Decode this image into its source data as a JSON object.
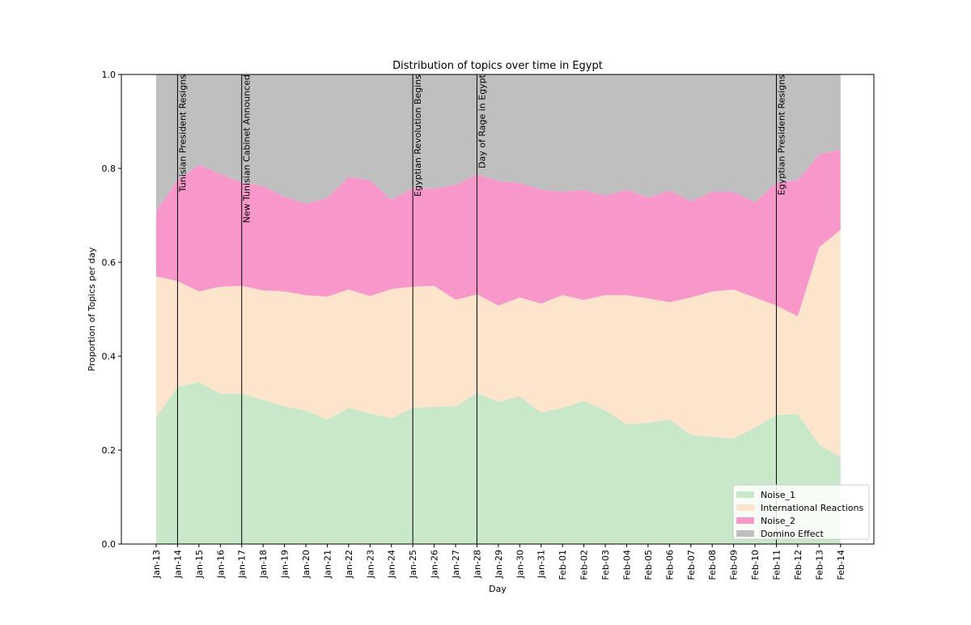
{
  "chart_data": {
    "type": "area",
    "title": "Distribution of topics over time in Egypt",
    "xlabel": "Day",
    "ylabel": "Proportion of Topics per day",
    "ylim": [
      0,
      1
    ],
    "yticks": [
      "0.0",
      "0.2",
      "0.4",
      "0.6",
      "0.8",
      "1.0"
    ],
    "stacked": true,
    "grid": false,
    "legend_position": "lower-right",
    "x": [
      "Jan-13",
      "Jan-14",
      "Jan-15",
      "Jan-16",
      "Jan-17",
      "Jan-18",
      "Jan-19",
      "Jan-20",
      "Jan-21",
      "Jan-22",
      "Jan-23",
      "Jan-24",
      "Jan-25",
      "Jan-26",
      "Jan-27",
      "Jan-28",
      "Jan-29",
      "Jan-30",
      "Jan-31",
      "Feb-01",
      "Feb-02",
      "Feb-03",
      "Feb-04",
      "Feb-05",
      "Feb-06",
      "Feb-07",
      "Feb-08",
      "Feb-09",
      "Feb-10",
      "Feb-11",
      "Feb-12",
      "Feb-13",
      "Feb-14"
    ],
    "series": [
      {
        "name": "Noise_1",
        "color": "#c9e8c9",
        "values": [
          0.27,
          0.335,
          0.345,
          0.32,
          0.32,
          0.307,
          0.293,
          0.285,
          0.265,
          0.29,
          0.278,
          0.268,
          0.29,
          0.292,
          0.293,
          0.322,
          0.303,
          0.315,
          0.28,
          0.29,
          0.305,
          0.285,
          0.255,
          0.258,
          0.265,
          0.233,
          0.228,
          0.225,
          0.248,
          0.275,
          0.277,
          0.212,
          0.185
        ]
      },
      {
        "name": "International Reactions",
        "color": "#fde5cd",
        "values": [
          0.3,
          0.225,
          0.193,
          0.228,
          0.23,
          0.233,
          0.245,
          0.245,
          0.262,
          0.252,
          0.25,
          0.275,
          0.258,
          0.258,
          0.227,
          0.21,
          0.205,
          0.21,
          0.232,
          0.24,
          0.215,
          0.245,
          0.275,
          0.265,
          0.25,
          0.292,
          0.31,
          0.317,
          0.277,
          0.233,
          0.208,
          0.42,
          0.484
        ]
      },
      {
        "name": "Noise_2",
        "color": "#f898ca",
        "values": [
          0.14,
          0.215,
          0.27,
          0.24,
          0.22,
          0.222,
          0.202,
          0.195,
          0.21,
          0.24,
          0.247,
          0.19,
          0.21,
          0.207,
          0.245,
          0.255,
          0.265,
          0.244,
          0.243,
          0.22,
          0.234,
          0.212,
          0.225,
          0.215,
          0.238,
          0.205,
          0.212,
          0.208,
          0.203,
          0.262,
          0.29,
          0.198,
          0.171
        ]
      },
      {
        "name": "Domino Effect",
        "color": "#bfbfbf",
        "values": [
          0.29,
          0.225,
          0.192,
          0.212,
          0.23,
          0.238,
          0.26,
          0.275,
          0.263,
          0.218,
          0.225,
          0.267,
          0.242,
          0.243,
          0.235,
          0.213,
          0.227,
          0.231,
          0.245,
          0.25,
          0.246,
          0.258,
          0.245,
          0.262,
          0.247,
          0.27,
          0.25,
          0.25,
          0.272,
          0.23,
          0.225,
          0.17,
          0.16
        ]
      }
    ],
    "events": [
      {
        "x": 1.0,
        "label": "Tunisian President Resigns"
      },
      {
        "x": 4.0,
        "label": "New Tunisian Cabinet Announced"
      },
      {
        "x": 12.0,
        "label": "Egyptian Revolution Begins"
      },
      {
        "x": 15.0,
        "label": "Day of Rage in Egypt"
      },
      {
        "x": 29.0,
        "label": "Egyptian President Resigns"
      }
    ]
  }
}
